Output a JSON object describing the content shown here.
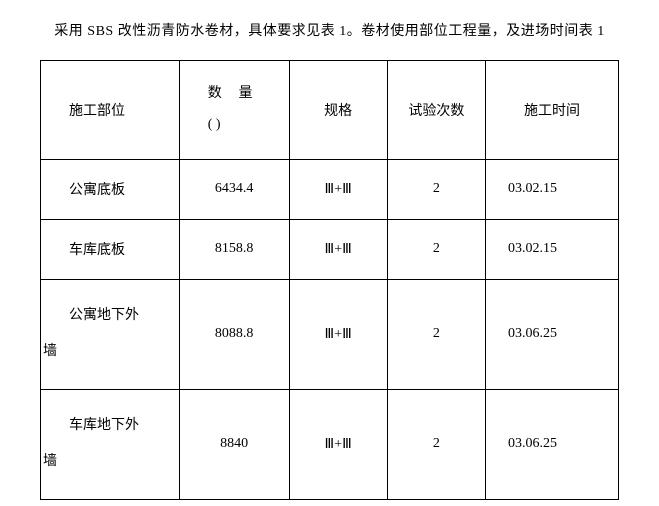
{
  "caption": "采用 SBS 改性沥青防水卷材，具体要求见表 1。卷材使用部位工程量，及进场时间表 1",
  "headers": {
    "location": "施工部位",
    "qty_line1": "数量",
    "qty_line2": "(   )",
    "spec": "规格",
    "tests": "试验次数",
    "time": "施工时间"
  },
  "rows": [
    {
      "location": "公寓底板",
      "location_wrap": false,
      "qty": "6434.4",
      "spec": "Ⅲ+Ⅲ",
      "tests": "2",
      "time": "03.02.15",
      "tall": false
    },
    {
      "location": "车库底板",
      "location_wrap": false,
      "qty": "8158.8",
      "spec": "Ⅲ+Ⅲ",
      "tests": "2",
      "time": "03.02.15",
      "tall": false
    },
    {
      "location_l1": "公寓地下外",
      "location_l2": "墙",
      "location_wrap": true,
      "qty": "8088.8",
      "spec": "Ⅲ+Ⅲ",
      "tests": "2",
      "time": "03.06.25",
      "tall": true
    },
    {
      "location_l1": "车库地下外",
      "location_l2": "墙",
      "location_wrap": true,
      "qty": "8840",
      "spec": "Ⅲ+Ⅲ",
      "tests": "2",
      "time": "03.06.25",
      "tall": true
    }
  ]
}
